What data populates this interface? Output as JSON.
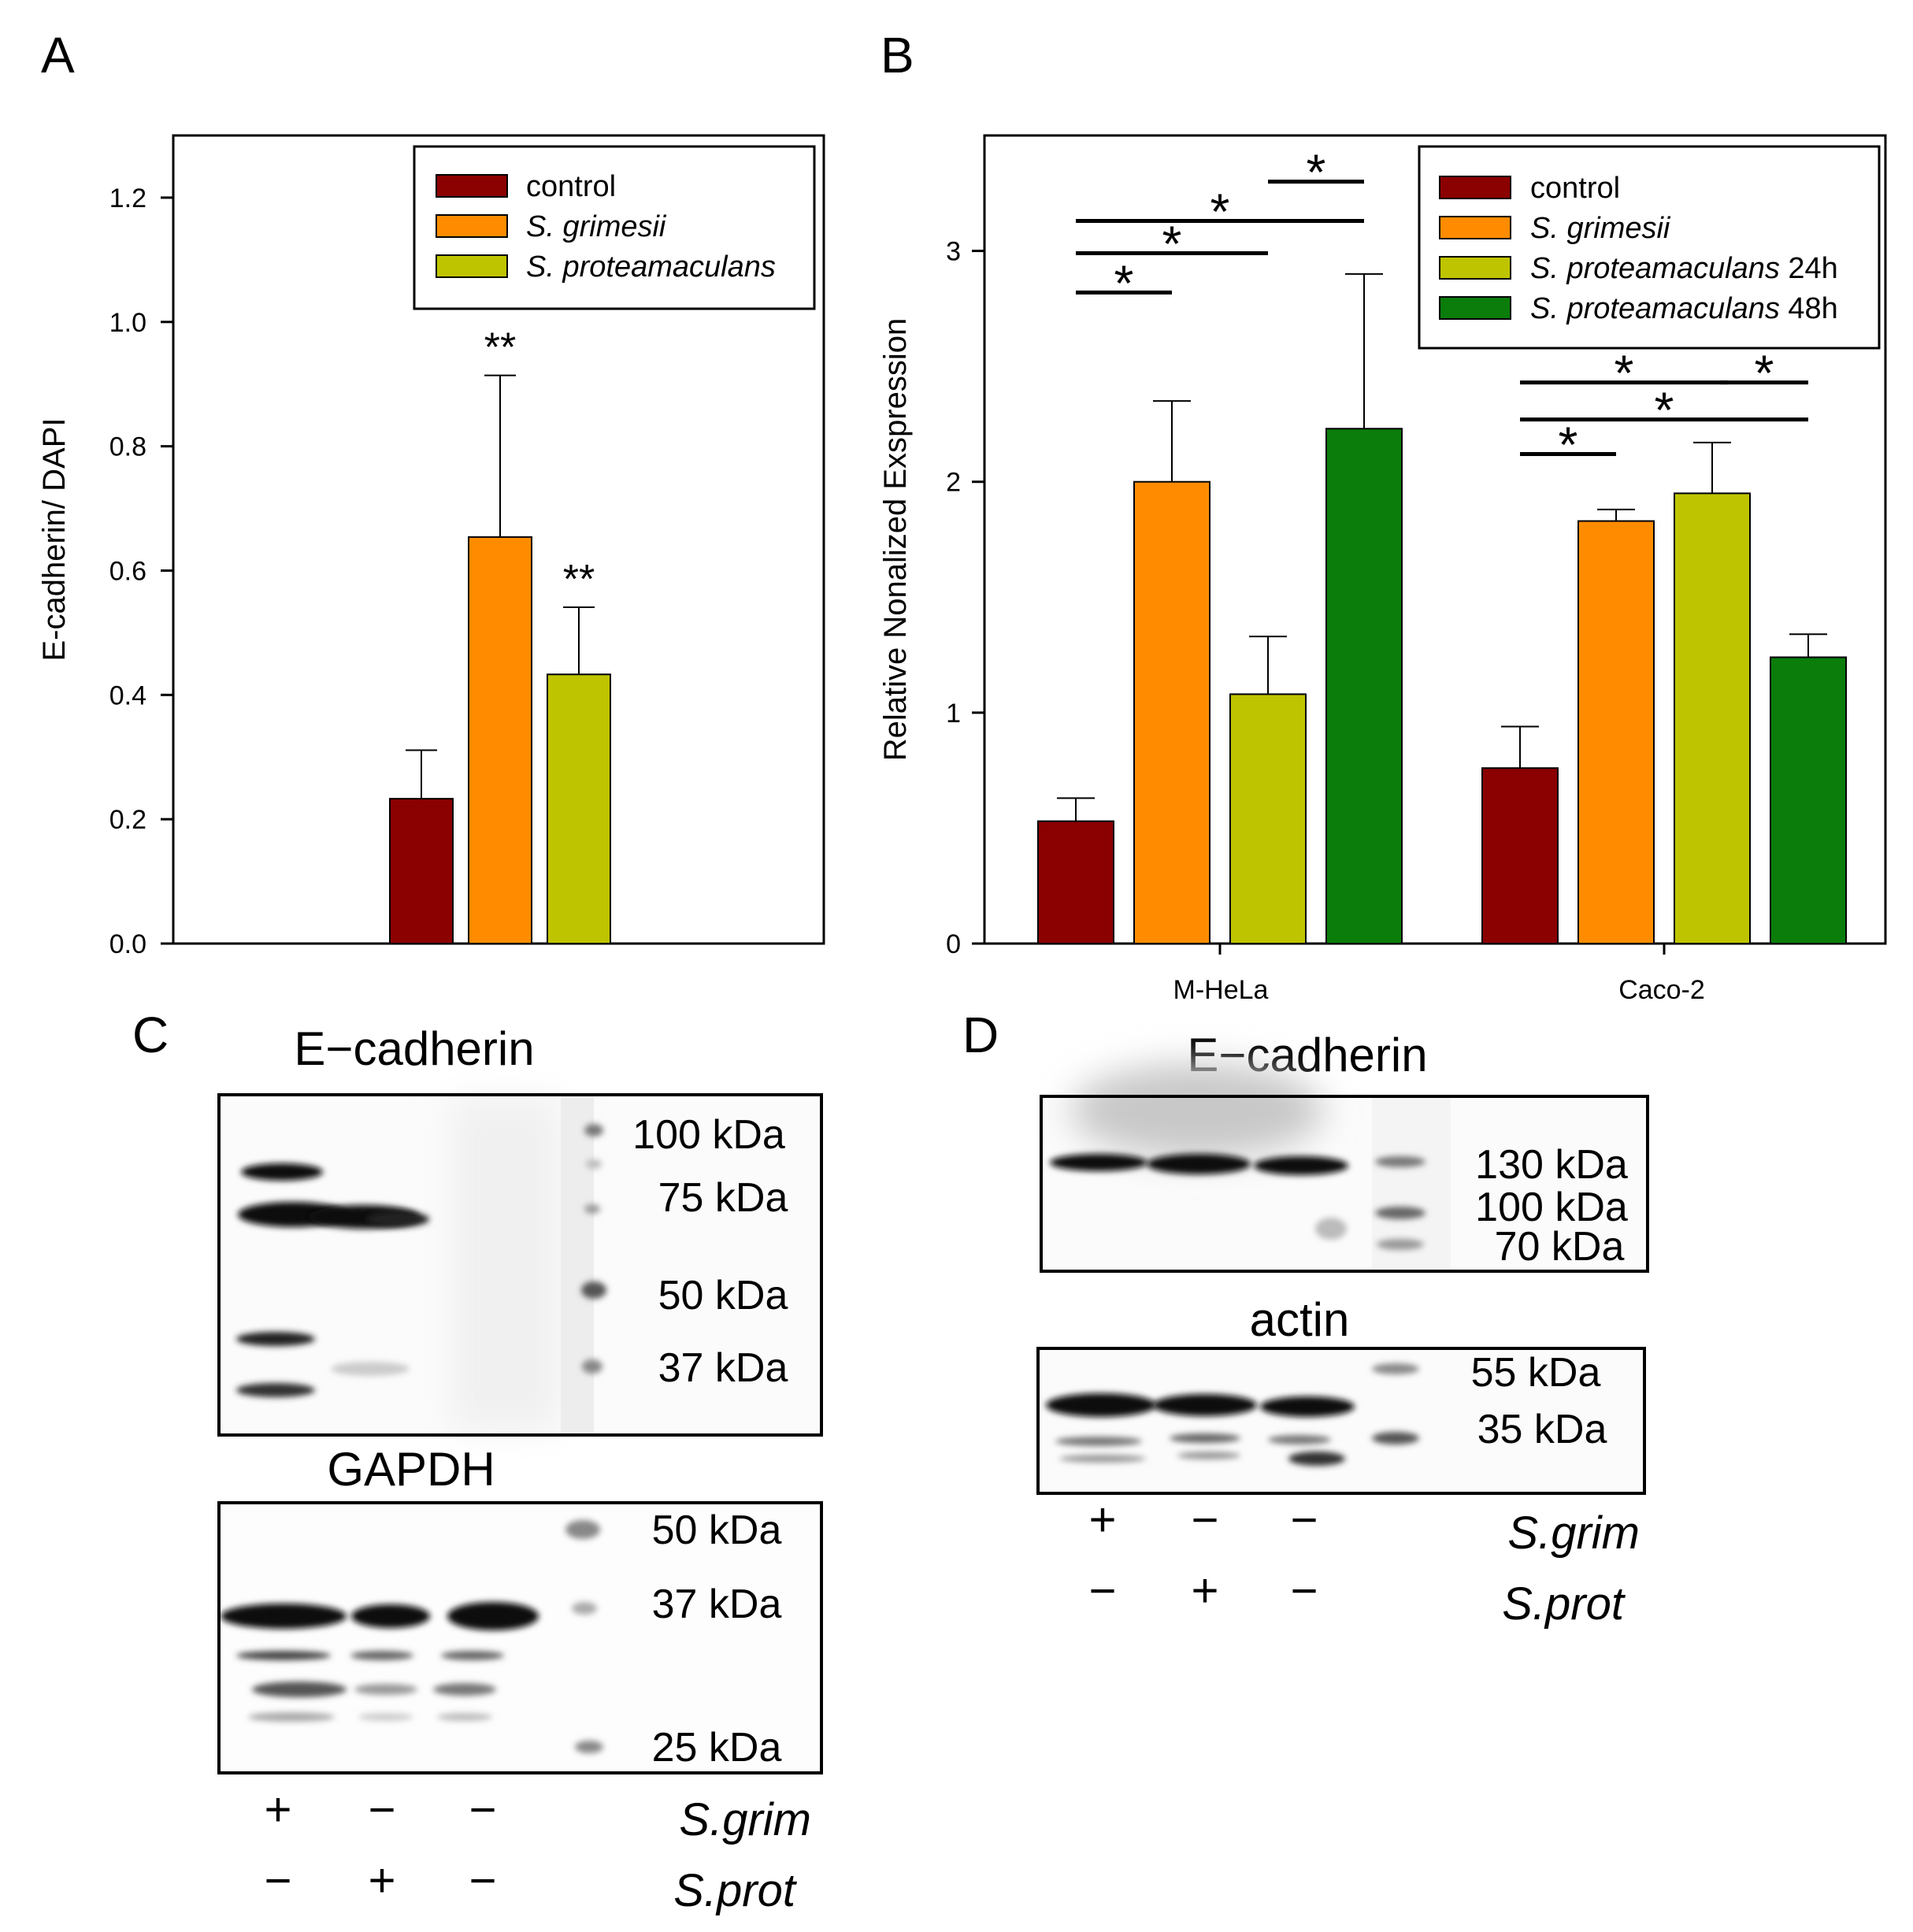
{
  "panel_labels": {
    "a": "A",
    "b": "B",
    "c": "C",
    "d": "D"
  },
  "colors": {
    "control": "#8b0000",
    "s_grimesii": "#ff8c00",
    "s_proteamaculans": "#bfc400",
    "s_proteamaculans_48h": "#0a7d0a",
    "axis": "#000000"
  },
  "chart_data": [
    {
      "id": "A",
      "type": "bar",
      "title": "",
      "xlabel": "",
      "ylabel": "E-cadherin/ DAPI",
      "ylim": [
        0,
        1.3
      ],
      "yticks": [
        "0.0",
        "0.2",
        "0.4",
        "0.6",
        "0.8",
        "1.0",
        "1.2"
      ],
      "legend_position": "top-right",
      "series": [
        {
          "name": "control",
          "italic": false,
          "color": "#8b0000",
          "values": [
            0.233
          ],
          "errors": [
            0.078
          ],
          "annotation": ""
        },
        {
          "name": "S. grimesii",
          "italic": true,
          "color": "#ff8c00",
          "values": [
            0.654
          ],
          "errors": [
            0.26
          ],
          "annotation": "**"
        },
        {
          "name": "S. proteamaculans",
          "italic": true,
          "color": "#bfc400",
          "values": [
            0.433
          ],
          "errors": [
            0.108
          ],
          "annotation": "**"
        }
      ]
    },
    {
      "id": "B",
      "type": "bar",
      "title": "",
      "xlabel": "",
      "ylabel": "Relative Nonalized Exspression",
      "ylim": [
        0,
        3.5
      ],
      "yticks": [
        "0",
        "1",
        "2",
        "3"
      ],
      "categories": [
        "M-HeLa",
        "Caco-2"
      ],
      "legend_position": "top-right",
      "series": [
        {
          "name": "control",
          "suffix": "",
          "italic": true,
          "color": "#8b0000",
          "values": [
            0.53,
            0.76
          ],
          "errors": [
            0.1,
            0.18
          ]
        },
        {
          "name": "S. grimesii",
          "suffix": "",
          "italic": true,
          "color": "#ff8c00",
          "values": [
            2.0,
            1.83
          ],
          "errors": [
            0.35,
            0.05
          ]
        },
        {
          "name": "S. proteamaculans",
          "suffix": " 24h",
          "italic": true,
          "color": "#bfc400",
          "values": [
            1.08,
            1.95
          ],
          "errors": [
            0.25,
            0.22
          ]
        },
        {
          "name": "S. proteamaculans",
          "suffix": " 48h",
          "italic": true,
          "color": "#0a7d0a",
          "values": [
            2.23,
            1.24
          ],
          "errors": [
            0.67,
            0.1
          ]
        }
      ],
      "significance": [
        {
          "category": 0,
          "from": 0,
          "to": 1,
          "level": 2.82,
          "label": "*"
        },
        {
          "category": 0,
          "from": 0,
          "to": 2,
          "level": 2.99,
          "label": "*"
        },
        {
          "category": 0,
          "from": 0,
          "to": 3,
          "level": 3.13,
          "label": "*"
        },
        {
          "category": 0,
          "from": 2,
          "to": 3,
          "level": 3.3,
          "label": "*"
        },
        {
          "category": 1,
          "from": 0,
          "to": 1,
          "level": 2.12,
          "label": "*"
        },
        {
          "category": 1,
          "from": 0,
          "to": 3,
          "level": 2.27,
          "label": "*"
        },
        {
          "category": 1,
          "from": 0,
          "to": 2,
          "level": 2.43,
          "label": "*"
        },
        {
          "category": 1,
          "from": 2,
          "to": 3,
          "level": 2.43,
          "label": "*"
        }
      ]
    }
  ],
  "blots": {
    "c": {
      "top": {
        "title": "E−cadherin",
        "markers": [
          "100 kDa",
          "75 kDa",
          "50 kDa",
          "37 kDa"
        ]
      },
      "bottom": {
        "title": "GAPDH",
        "markers": [
          "50 kDa",
          "37 kDa",
          "25 kDa"
        ]
      },
      "conditions": {
        "rows": [
          {
            "label": "S.grim",
            "signs": [
              "+",
              "−",
              "−"
            ]
          },
          {
            "label": "S.prot",
            "signs": [
              "−",
              "+",
              "−"
            ]
          }
        ]
      }
    },
    "d": {
      "top": {
        "title": "E−cadherin",
        "markers": [
          "130 kDa",
          "100 kDa",
          "70 kDa"
        ]
      },
      "bottom": {
        "title": "actin",
        "markers": [
          "55 kDa",
          "35 kDa"
        ]
      },
      "conditions": {
        "rows": [
          {
            "label": "S.grim",
            "signs": [
              "+",
              "−",
              "−"
            ]
          },
          {
            "label": "S.prot",
            "signs": [
              "−",
              "+",
              "−"
            ]
          }
        ]
      }
    }
  }
}
